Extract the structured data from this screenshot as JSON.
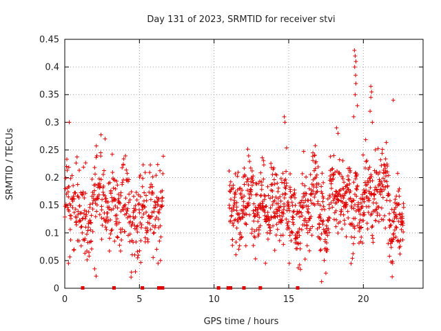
{
  "chart_data": {
    "type": "scatter",
    "title": "Day 131 of 2023, SRMTID for receiver stvi",
    "xlabel": "GPS time / hours",
    "ylabel": "SRMTID / TECUs",
    "xlim": [
      0,
      24
    ],
    "ylim": [
      0,
      0.45
    ],
    "grid": true,
    "marker": "+",
    "color": "#e00000",
    "x_ticks": [
      {
        "value": 0,
        "label": "0"
      },
      {
        "value": 5,
        "label": "5"
      },
      {
        "value": 10,
        "label": "10"
      },
      {
        "value": 15,
        "label": "15"
      },
      {
        "value": 20,
        "label": "20"
      }
    ],
    "y_ticks": [
      {
        "value": 0,
        "label": "0"
      },
      {
        "value": 0.05,
        "label": "0.05"
      },
      {
        "value": 0.1,
        "label": "0.1"
      },
      {
        "value": 0.15,
        "label": "0.15"
      },
      {
        "value": 0.2,
        "label": "0.2"
      },
      {
        "value": 0.25,
        "label": "0.25"
      },
      {
        "value": 0.3,
        "label": "0.3"
      },
      {
        "value": 0.35,
        "label": "0.35"
      },
      {
        "value": 0.4,
        "label": "0.4"
      },
      {
        "value": 0.45,
        "label": "0.45"
      }
    ],
    "segments": [
      {
        "x_start": 0.0,
        "x_end": 6.6,
        "y_min": 0.02,
        "y_max": 0.3,
        "base": 0.16,
        "spread": 0.05,
        "count": 420
      },
      {
        "x_start": 11.0,
        "x_end": 22.7,
        "y_min": 0.01,
        "y_max": 0.29,
        "base": 0.16,
        "spread": 0.045,
        "count": 900
      }
    ],
    "highlights": [
      {
        "x": 19.4,
        "y": 0.43
      },
      {
        "x": 19.45,
        "y": 0.42
      },
      {
        "x": 19.5,
        "y": 0.41
      },
      {
        "x": 19.42,
        "y": 0.4
      },
      {
        "x": 19.48,
        "y": 0.385
      },
      {
        "x": 19.5,
        "y": 0.37
      },
      {
        "x": 20.5,
        "y": 0.365
      },
      {
        "x": 20.55,
        "y": 0.355
      },
      {
        "x": 20.5,
        "y": 0.345
      },
      {
        "x": 19.45,
        "y": 0.35
      },
      {
        "x": 19.6,
        "y": 0.33
      },
      {
        "x": 22.0,
        "y": 0.34
      },
      {
        "x": 19.35,
        "y": 0.31
      },
      {
        "x": 20.45,
        "y": 0.32
      },
      {
        "x": 20.6,
        "y": 0.3
      },
      {
        "x": 0.3,
        "y": 0.3
      },
      {
        "x": 14.7,
        "y": 0.31
      },
      {
        "x": 14.75,
        "y": 0.3
      },
      {
        "x": 18.2,
        "y": 0.29
      },
      {
        "x": 18.3,
        "y": 0.28
      },
      {
        "x": 2.7,
        "y": 0.27
      },
      {
        "x": 2.0,
        "y": 0.035
      },
      {
        "x": 2.1,
        "y": 0.022
      },
      {
        "x": 17.2,
        "y": 0.012
      },
      {
        "x": 6.25,
        "y": 0.045
      },
      {
        "x": 0.25,
        "y": 0.045
      },
      {
        "x": 21.75,
        "y": 0.058
      }
    ],
    "gap_markers": [
      1.2,
      3.3,
      5.2,
      6.3,
      6.45,
      6.55,
      10.3,
      10.95,
      11.1,
      12.0,
      13.1,
      15.6
    ],
    "gap_marker_y": 0
  }
}
